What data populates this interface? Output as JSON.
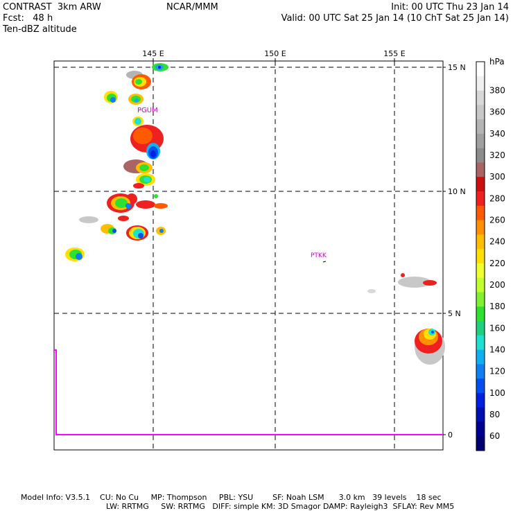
{
  "header": {
    "left_line1": "CONTRAST  3km ARW",
    "left_line2": "Fcst:   48 h",
    "left_line3": "Ten-dBZ altitude",
    "center_line1": "NCAR/MMM",
    "right_line1": "Init: 00 UTC Thu 23 Jan 14",
    "right_line2": "Valid: 00 UTC Sat 25 Jan 14 (10 ChT Sat 25 Jan 14)"
  },
  "map": {
    "lon_ticks": [
      {
        "lon": 145,
        "label": "145 E"
      },
      {
        "lon": 150,
        "label": "150 E"
      },
      {
        "lon": 155,
        "label": "155 E"
      }
    ],
    "lat_ticks": [
      {
        "lat": 15,
        "label": "15 N"
      },
      {
        "lat": 10,
        "label": "10 N"
      },
      {
        "lat": 5,
        "label": "5 N"
      },
      {
        "lat": 0,
        "label": "0"
      }
    ],
    "stations": [
      {
        "name": "PGUM",
        "color": "#cc00cc"
      },
      {
        "name": "PTKK",
        "color": "#cc00cc"
      }
    ],
    "grid_color": "#000000",
    "boundary_color": "#ff00ff"
  },
  "colorbar": {
    "unit": "hPa",
    "labels": [
      "380",
      "360",
      "340",
      "320",
      "300",
      "280",
      "260",
      "240",
      "220",
      "200",
      "180",
      "160",
      "140",
      "120",
      "100",
      "80",
      "60"
    ],
    "colors": [
      "#ffffff",
      "#f0f0f0",
      "#d8d8d8",
      "#c8c8c8",
      "#b4b4b4",
      "#a0a0a0",
      "#8c8c8c",
      "#aa6464",
      "#cc1010",
      "#ee2020",
      "#ff5a00",
      "#ff9000",
      "#ffbe00",
      "#ffe000",
      "#f0ff30",
      "#c0ff30",
      "#80f030",
      "#30e030",
      "#20d080",
      "#20e0d0",
      "#10b0f0",
      "#1080f0",
      "#0050f0",
      "#0020e0",
      "#0010b0",
      "#000090",
      "#000070"
    ]
  },
  "footer": {
    "line1": "Model Info: V3.5.1    CU: No Cu     MP: Thompson     PBL: YSU        SF: Noah LSM      3.0 km   39 levels    18 sec",
    "line2": "LW: RRTMG     SW: RRTMG   DIFF: simple KM: 3D Smagor DAMP: Rayleigh3  SFLAY: Rev MM5"
  }
}
